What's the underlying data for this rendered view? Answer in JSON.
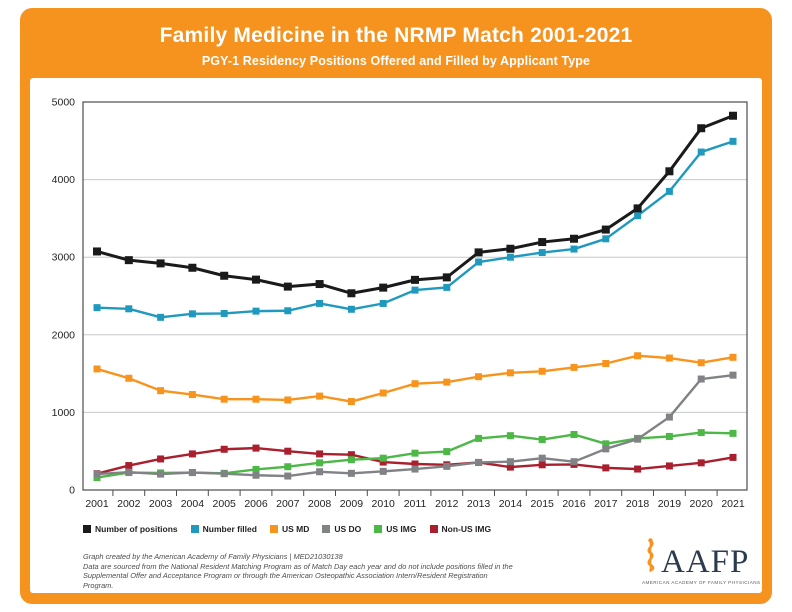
{
  "header": {
    "title": "Family Medicine in the NRMP Match 2001-2021",
    "subtitle": "PGY-1 Residency Positions Offered and Filled by Applicant Type"
  },
  "colors": {
    "frame_orange": "#F6921E",
    "axis": "#4D4D4F",
    "grid": "#C7C8CA",
    "tick_text": "#231F20"
  },
  "chart_data": {
    "type": "line",
    "x": [
      2001,
      2002,
      2003,
      2004,
      2005,
      2006,
      2007,
      2008,
      2009,
      2010,
      2011,
      2012,
      2013,
      2014,
      2015,
      2016,
      2017,
      2018,
      2019,
      2020,
      2021
    ],
    "ylim": [
      0,
      5000
    ],
    "yticks": [
      0,
      1000,
      2000,
      3000,
      4000,
      5000
    ],
    "grid": true,
    "legend_position": "bottom",
    "marker": "square",
    "series": [
      {
        "name": "Number of positions",
        "color": "#1A1A1A",
        "values": [
          3074,
          2962,
          2920,
          2864,
          2761,
          2711,
          2621,
          2654,
          2535,
          2608,
          2708,
          2740,
          3062,
          3109,
          3195,
          3238,
          3356,
          3629,
          4107,
          4662,
          4823
        ]
      },
      {
        "name": "Number filled",
        "color": "#2099BE",
        "values": [
          2350,
          2335,
          2225,
          2270,
          2275,
          2305,
          2310,
          2404,
          2329,
          2404,
          2576,
          2611,
          2938,
          3000,
          3060,
          3105,
          3237,
          3535,
          3848,
          4355,
          4493
        ]
      },
      {
        "name": "US MD",
        "color": "#F7941E",
        "values": [
          1560,
          1440,
          1280,
          1230,
          1170,
          1170,
          1160,
          1210,
          1140,
          1250,
          1370,
          1390,
          1460,
          1510,
          1530,
          1580,
          1630,
          1730,
          1700,
          1640,
          1710
        ]
      },
      {
        "name": "US DO",
        "color": "#808285",
        "values": [
          205,
          230,
          205,
          225,
          210,
          190,
          180,
          235,
          215,
          240,
          270,
          305,
          355,
          365,
          410,
          365,
          530,
          655,
          940,
          1430,
          1480
        ]
      },
      {
        "name": "US IMG",
        "color": "#4DB748",
        "values": [
          160,
          225,
          220,
          225,
          215,
          265,
          300,
          350,
          390,
          410,
          475,
          495,
          665,
          700,
          650,
          715,
          595,
          665,
          690,
          740,
          730
        ]
      },
      {
        "name": "Non-US IMG",
        "color": "#A91F2D",
        "values": [
          210,
          315,
          400,
          465,
          525,
          540,
          500,
          465,
          455,
          360,
          335,
          325,
          355,
          295,
          325,
          330,
          285,
          270,
          310,
          350,
          420
        ]
      }
    ]
  },
  "footer": {
    "lines": [
      "Graph created by the American Academy of Family Physicians  |  MED21030138",
      "Data are sourced from the National Resident Matching Program as of Match Day each year and  do not include positions filled in the",
      "Supplemental Offer and Acceptance Program or through the American Osteopathic Association Intern/Resident Registration Program."
    ]
  },
  "logo": {
    "acronym": "AAFP",
    "caption": "AMERICAN ACADEMY OF FAMILY PHYSICIANS"
  }
}
